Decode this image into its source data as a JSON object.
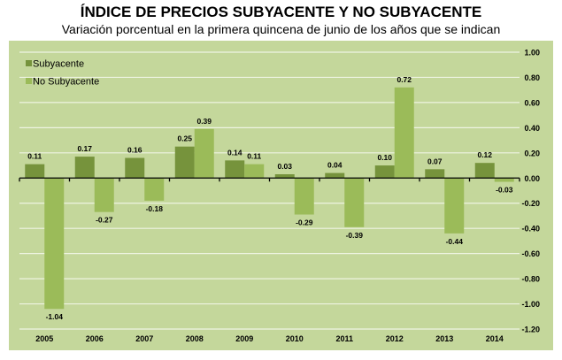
{
  "chart_data": {
    "type": "bar",
    "title": "ÍNDICE DE PRECIOS SUBYACENTE Y NO SUBYACENTE",
    "subtitle": "Variación porcentual en la primera quincena de junio de los años que se indican",
    "categories": [
      "2005",
      "2006",
      "2007",
      "2008",
      "2009",
      "2010",
      "2011",
      "2012",
      "2013",
      "2014"
    ],
    "series": [
      {
        "name": "Subyacente",
        "color": "#76933c",
        "values": [
          0.11,
          0.17,
          0.16,
          0.25,
          0.14,
          0.03,
          0.04,
          0.1,
          0.07,
          0.12
        ]
      },
      {
        "name": "No Subyacente",
        "color": "#9bbb59",
        "values": [
          -1.04,
          -0.27,
          -0.18,
          0.39,
          0.11,
          -0.29,
          -0.39,
          0.72,
          -0.44,
          -0.03
        ]
      }
    ],
    "ylim": [
      -1.2,
      1.0
    ],
    "yticks": [
      "1.00",
      "0.80",
      "0.60",
      "0.40",
      "0.20",
      "0.00",
      "-0.20",
      "-0.40",
      "-0.60",
      "-0.80",
      "-1.00",
      "-1.20"
    ],
    "y_axis_position": "right",
    "grid": true,
    "legend": "top-left",
    "background": "#c4d79b"
  }
}
